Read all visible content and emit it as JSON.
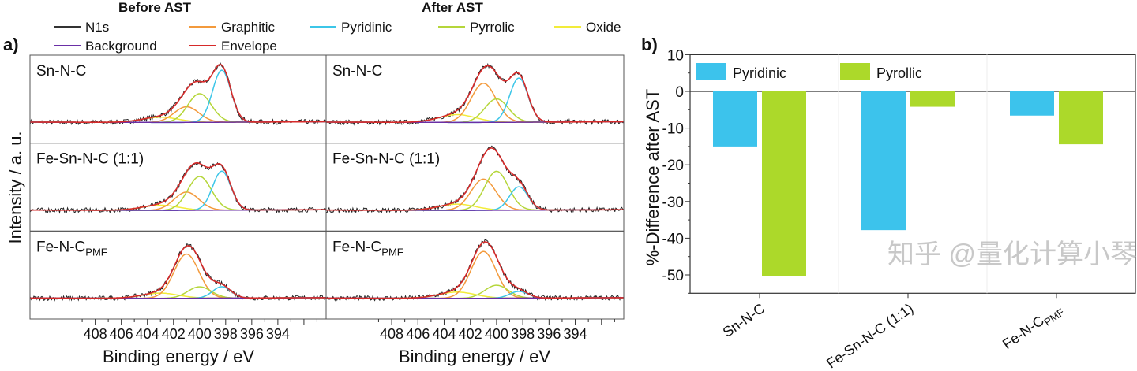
{
  "panel_a": {
    "label": "a)",
    "col_titles": [
      "Before AST",
      "After AST"
    ],
    "ylabel": "Intensity / a. u.",
    "xlabel": "Binding energy / eV",
    "legend": [
      {
        "name": "N1s",
        "color": "#333333"
      },
      {
        "name": "Graphitic",
        "color": "#f39a3c"
      },
      {
        "name": "Pyridinic",
        "color": "#3cc6e8"
      },
      {
        "name": "Pyrrolic",
        "color": "#b5d63a"
      },
      {
        "name": "Oxide",
        "color": "#f2ec3a"
      },
      {
        "name": "Background",
        "color": "#6a2fa6"
      },
      {
        "name": "Envelope",
        "color": "#d62a2a"
      }
    ],
    "rows": [
      {
        "sample": "Sn-N-C",
        "sub": ""
      },
      {
        "sample": "Fe-Sn-N-C (1:1)",
        "sub": ""
      },
      {
        "sample": "Fe-N-C",
        "sub": "PMF"
      }
    ]
  },
  "chart_data": [
    {
      "type": "line",
      "description_units": "Binding energy (eV) vs intensity (a.u.)",
      "xlim": [
        413,
        390.3
      ],
      "x_ticks": [
        408,
        406,
        404,
        402,
        400,
        398,
        396,
        394
      ],
      "peak_centers_eV": {
        "Graphitic": 401.0,
        "Pyrrolic": 400.0,
        "Pyridinic": 398.3,
        "Oxide": 403.0
      },
      "panels": [
        {
          "sample": "Sn-N-C",
          "condition": "Before AST",
          "amplitudes": {
            "Pyridinic": 1.0,
            "Pyrrolic": 0.55,
            "Graphitic": 0.3,
            "Oxide": 0.1
          }
        },
        {
          "sample": "Sn-N-C",
          "condition": "After AST",
          "amplitudes": {
            "Pyridinic": 0.85,
            "Pyrrolic": 0.45,
            "Graphitic": 0.75,
            "Oxide": 0.15
          }
        },
        {
          "sample": "Fe-Sn-N-C (1:1)",
          "condition": "Before AST",
          "amplitudes": {
            "Pyridinic": 0.75,
            "Pyrrolic": 0.65,
            "Graphitic": 0.35,
            "Oxide": 0.1
          }
        },
        {
          "sample": "Fe-Sn-N-C (1:1)",
          "condition": "After AST",
          "amplitudes": {
            "Pyridinic": 0.45,
            "Pyrrolic": 0.75,
            "Graphitic": 0.6,
            "Oxide": 0.12
          }
        },
        {
          "sample": "Fe-N-CPMF",
          "condition": "Before AST",
          "amplitudes": {
            "Pyridinic": 0.22,
            "Pyrrolic": 0.22,
            "Graphitic": 0.85,
            "Oxide": 0.1
          }
        },
        {
          "sample": "Fe-N-CPMF",
          "condition": "After AST",
          "amplitudes": {
            "Pyridinic": 0.13,
            "Pyrrolic": 0.25,
            "Graphitic": 0.9,
            "Oxide": 0.12
          }
        }
      ]
    },
    {
      "type": "bar",
      "label": "b)",
      "categories": [
        "Sn-N-C",
        "Fe-Sn-N-C (1:1)",
        "Fe-N-C"
      ],
      "category_subscripts": [
        "",
        "",
        "PMF"
      ],
      "series": [
        {
          "name": "Pyridinic",
          "color": "#3cc3ec",
          "values": [
            -15.0,
            -37.8,
            -6.6
          ]
        },
        {
          "name": "Pyrollic",
          "color": "#acd92a",
          "values": [
            -50.3,
            -4.2,
            -14.4
          ]
        }
      ],
      "ylabel": "%-Difference after AST",
      "ylim": [
        -55,
        10
      ],
      "y_ticks": [
        10,
        0,
        -10,
        -20,
        -30,
        -40,
        -50
      ],
      "legend": "top-left"
    }
  ],
  "watermark": "知乎 @量化计算小琴"
}
